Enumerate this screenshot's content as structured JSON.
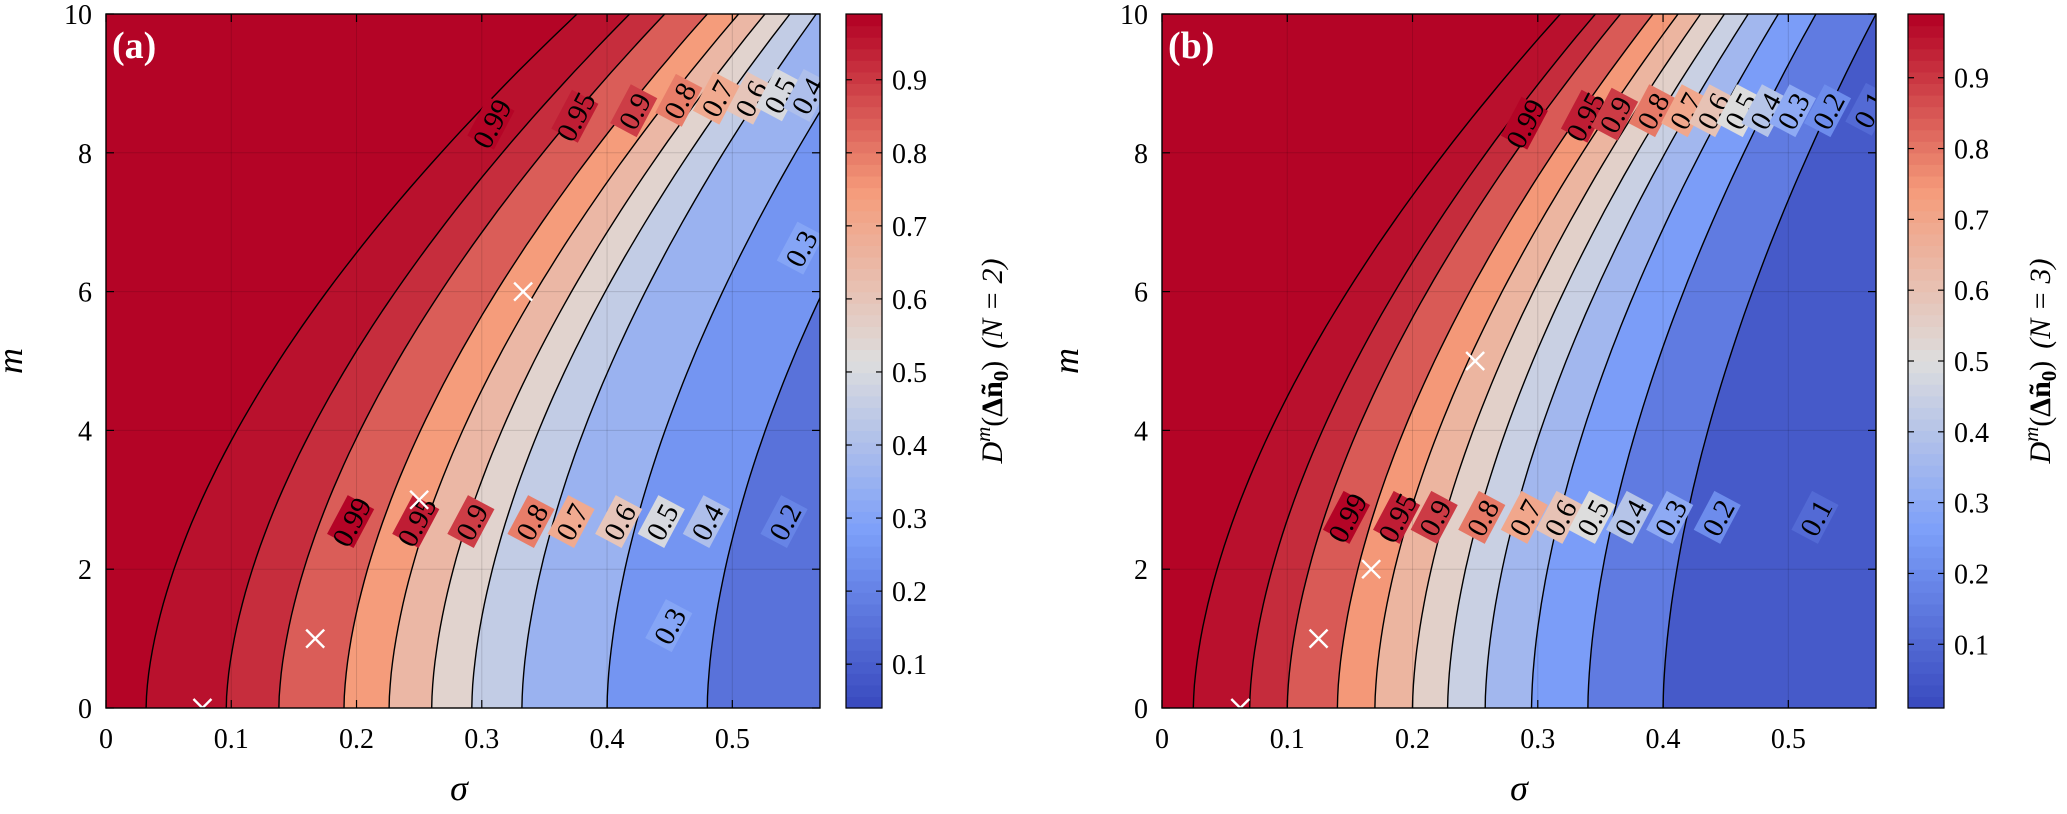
{
  "figure": {
    "panels": [
      {
        "tag": "(a)",
        "xlabel": "σ",
        "ylabel": "m",
        "colorbar_label": "D^m(Δñ0) (N = 2)",
        "colorbar_label_parts": {
          "d": "D",
          "m": "m",
          "open": "(",
          "delta": "Δ",
          "n": "ñ",
          "zero": "0",
          "close": ")",
          "n_paren": "(N = 2)"
        }
      },
      {
        "tag": "(b)",
        "xlabel": "σ",
        "ylabel": "m",
        "colorbar_label": "D^m(Δñ0) (N = 3)",
        "colorbar_label_parts": {
          "d": "D",
          "m": "m",
          "open": "(",
          "delta": "Δ",
          "n": "ñ",
          "zero": "0",
          "close": ")",
          "n_paren": "(N = 3)"
        }
      }
    ]
  },
  "chart_data": [
    {
      "type": "heatmap",
      "subtype": "filled-contour",
      "panel": "(a)",
      "xlabel": "σ",
      "ylabel": "m",
      "xlim": [
        0,
        0.57
      ],
      "ylim": [
        0,
        10
      ],
      "xticks": [
        0,
        0.1,
        0.2,
        0.3,
        0.4,
        0.5
      ],
      "xtick_labels": [
        "0",
        "0.1",
        "0.2",
        "0.3",
        "0.4",
        "0.5"
      ],
      "yticks": [
        0,
        2,
        4,
        6,
        8,
        10
      ],
      "ytick_labels": [
        "0",
        "2",
        "4",
        "6",
        "8",
        "10"
      ],
      "grid": true,
      "colormap": "coolwarm",
      "colorbar": {
        "label": "D^m(Δñ0) (N = 2)",
        "range": [
          0.04,
          0.99
        ],
        "ticks": [
          0.1,
          0.2,
          0.3,
          0.4,
          0.5,
          0.6,
          0.7,
          0.8,
          0.9
        ],
        "tick_labels": [
          "0.1",
          "0.2",
          "0.3",
          "0.4",
          "0.5",
          "0.6",
          "0.7",
          "0.8",
          "0.9"
        ],
        "placement": "right"
      },
      "contour_levels": [
        0.2,
        0.3,
        0.4,
        0.5,
        0.6,
        0.7,
        0.8,
        0.9,
        0.95,
        0.99
      ],
      "contour_lines": [
        {
          "level": 0.99,
          "sigma_at_m0": 0.032,
          "sigma_at_m10": 0.376
        },
        {
          "level": 0.95,
          "sigma_at_m0": 0.096,
          "sigma_at_m10": 0.418
        },
        {
          "level": 0.9,
          "sigma_at_m0": 0.138,
          "sigma_at_m10": 0.446
        },
        {
          "level": 0.8,
          "sigma_at_m0": 0.19,
          "sigma_at_m10": 0.48
        },
        {
          "level": 0.7,
          "sigma_at_m0": 0.226,
          "sigma_at_m10": 0.505
        },
        {
          "level": 0.6,
          "sigma_at_m0": 0.26,
          "sigma_at_m10": 0.526
        },
        {
          "level": 0.5,
          "sigma_at_m0": 0.292,
          "sigma_at_m10": 0.546
        },
        {
          "level": 0.4,
          "sigma_at_m0": 0.332,
          "sigma_at_m10": 0.567
        },
        {
          "level": 0.3,
          "sigma_at_m0": 0.4,
          "sigma_at_m10": 0.62
        },
        {
          "level": 0.2,
          "sigma_at_m0": 0.48,
          "sigma_at_m10": 0.7
        }
      ],
      "contour_labels": [
        {
          "text": "0.99",
          "sigma": 0.308,
          "m": 8.42
        },
        {
          "text": "0.95",
          "sigma": 0.375,
          "m": 8.52
        },
        {
          "text": "0.9",
          "sigma": 0.422,
          "m": 8.6
        },
        {
          "text": "0.8",
          "sigma": 0.458,
          "m": 8.75
        },
        {
          "text": "0.7",
          "sigma": 0.488,
          "m": 8.78
        },
        {
          "text": "0.6",
          "sigma": 0.515,
          "m": 8.78
        },
        {
          "text": "0.5",
          "sigma": 0.538,
          "m": 8.83
        },
        {
          "text": "0.4",
          "sigma": 0.56,
          "m": 8.82
        },
        {
          "text": "0.3",
          "sigma": 0.555,
          "m": 6.62
        },
        {
          "text": "0.99",
          "sigma": 0.196,
          "m": 2.68
        },
        {
          "text": "0.95",
          "sigma": 0.248,
          "m": 2.68
        },
        {
          "text": "0.9",
          "sigma": 0.292,
          "m": 2.68
        },
        {
          "text": "0.8",
          "sigma": 0.34,
          "m": 2.68
        },
        {
          "text": "0.7",
          "sigma": 0.372,
          "m": 2.68
        },
        {
          "text": "0.6",
          "sigma": 0.41,
          "m": 2.68
        },
        {
          "text": "0.5",
          "sigma": 0.444,
          "m": 2.68
        },
        {
          "text": "0.4",
          "sigma": 0.48,
          "m": 2.68
        },
        {
          "text": "0.3",
          "sigma": 0.45,
          "m": 1.18
        },
        {
          "text": "0.2",
          "sigma": 0.542,
          "m": 2.68
        }
      ],
      "markers": [
        {
          "symbol": "x",
          "sigma": 0.077,
          "m": 0
        },
        {
          "symbol": "x",
          "sigma": 0.167,
          "m": 1
        },
        {
          "symbol": "x",
          "sigma": 0.25,
          "m": 3
        },
        {
          "symbol": "x",
          "sigma": 0.333,
          "m": 6
        }
      ]
    },
    {
      "type": "heatmap",
      "subtype": "filled-contour",
      "panel": "(b)",
      "xlabel": "σ",
      "ylabel": "m",
      "xlim": [
        0,
        0.57
      ],
      "ylim": [
        0,
        10
      ],
      "xticks": [
        0,
        0.1,
        0.2,
        0.3,
        0.4,
        0.5
      ],
      "xtick_labels": [
        "0",
        "0.1",
        "0.2",
        "0.3",
        "0.4",
        "0.5"
      ],
      "yticks": [
        0,
        2,
        4,
        6,
        8,
        10
      ],
      "ytick_labels": [
        "0",
        "2",
        "4",
        "6",
        "8",
        "10"
      ],
      "grid": true,
      "colormap": "coolwarm",
      "colorbar": {
        "label": "D^m(Δñ0) (N = 3)",
        "range": [
          0.01,
          0.99
        ],
        "ticks": [
          0.1,
          0.2,
          0.3,
          0.4,
          0.5,
          0.6,
          0.7,
          0.8,
          0.9
        ],
        "tick_labels": [
          "0.1",
          "0.2",
          "0.3",
          "0.4",
          "0.5",
          "0.6",
          "0.7",
          "0.8",
          "0.9"
        ],
        "placement": "right"
      },
      "contour_levels": [
        0.1,
        0.2,
        0.3,
        0.4,
        0.5,
        0.6,
        0.7,
        0.8,
        0.9,
        0.95,
        0.99
      ],
      "contour_lines": [
        {
          "level": 0.99,
          "sigma_at_m0": 0.025,
          "sigma_at_m10": 0.318
        },
        {
          "level": 0.95,
          "sigma_at_m0": 0.07,
          "sigma_at_m10": 0.346
        },
        {
          "level": 0.9,
          "sigma_at_m0": 0.1,
          "sigma_at_m10": 0.366
        },
        {
          "level": 0.8,
          "sigma_at_m0": 0.14,
          "sigma_at_m10": 0.392
        },
        {
          "level": 0.7,
          "sigma_at_m0": 0.17,
          "sigma_at_m10": 0.412
        },
        {
          "level": 0.6,
          "sigma_at_m0": 0.2,
          "sigma_at_m10": 0.43
        },
        {
          "level": 0.5,
          "sigma_at_m0": 0.228,
          "sigma_at_m10": 0.449
        },
        {
          "level": 0.4,
          "sigma_at_m0": 0.258,
          "sigma_at_m10": 0.468
        },
        {
          "level": 0.3,
          "sigma_at_m0": 0.295,
          "sigma_at_m10": 0.492
        },
        {
          "level": 0.2,
          "sigma_at_m0": 0.34,
          "sigma_at_m10": 0.522
        },
        {
          "level": 0.1,
          "sigma_at_m0": 0.4,
          "sigma_at_m10": 0.57
        }
      ],
      "contour_labels": [
        {
          "text": "0.99",
          "sigma": 0.29,
          "m": 8.42
        },
        {
          "text": "0.95",
          "sigma": 0.338,
          "m": 8.52
        },
        {
          "text": "0.9",
          "sigma": 0.362,
          "m": 8.55
        },
        {
          "text": "0.8",
          "sigma": 0.392,
          "m": 8.6
        },
        {
          "text": "0.7",
          "sigma": 0.418,
          "m": 8.6
        },
        {
          "text": "0.6",
          "sigma": 0.44,
          "m": 8.6
        },
        {
          "text": "0.5",
          "sigma": 0.462,
          "m": 8.6
        },
        {
          "text": "0.4",
          "sigma": 0.482,
          "m": 8.6
        },
        {
          "text": "0.3",
          "sigma": 0.504,
          "m": 8.6
        },
        {
          "text": "0.2",
          "sigma": 0.532,
          "m": 8.6
        },
        {
          "text": "0.1",
          "sigma": 0.565,
          "m": 8.62
        },
        {
          "text": "0.99",
          "sigma": 0.148,
          "m": 2.74
        },
        {
          "text": "0.95",
          "sigma": 0.188,
          "m": 2.74
        },
        {
          "text": "0.9",
          "sigma": 0.218,
          "m": 2.74
        },
        {
          "text": "0.8",
          "sigma": 0.256,
          "m": 2.74
        },
        {
          "text": "0.7",
          "sigma": 0.29,
          "m": 2.74
        },
        {
          "text": "0.6",
          "sigma": 0.318,
          "m": 2.74
        },
        {
          "text": "0.5",
          "sigma": 0.344,
          "m": 2.74
        },
        {
          "text": "0.4",
          "sigma": 0.374,
          "m": 2.74
        },
        {
          "text": "0.3",
          "sigma": 0.406,
          "m": 2.74
        },
        {
          "text": "0.2",
          "sigma": 0.444,
          "m": 2.74
        },
        {
          "text": "0.1",
          "sigma": 0.522,
          "m": 2.74
        }
      ],
      "markers": [
        {
          "symbol": "x",
          "sigma": 0.0625,
          "m": 0
        },
        {
          "symbol": "x",
          "sigma": 0.125,
          "m": 1
        },
        {
          "symbol": "x",
          "sigma": 0.167,
          "m": 2
        },
        {
          "symbol": "x",
          "sigma": 0.25,
          "m": 5
        }
      ]
    }
  ]
}
